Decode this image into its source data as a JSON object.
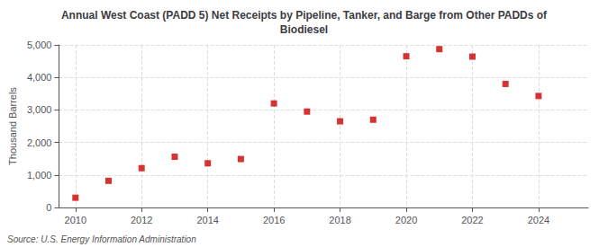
{
  "chart_data": {
    "type": "scatter",
    "title": "Annual West Coast (PADD 5) Net Receipts by Pipeline, Tanker, and Barge from Other PADDs of\nBiodiesel",
    "ylabel": "Thousand Barrels",
    "source": "Source: U.S. Energy Information Administration",
    "x": [
      2010,
      2011,
      2012,
      2013,
      2014,
      2015,
      2016,
      2017,
      2018,
      2019,
      2020,
      2021,
      2022,
      2023,
      2024
    ],
    "values": [
      300,
      820,
      1210,
      1560,
      1360,
      1490,
      3200,
      2950,
      2650,
      2700,
      4650,
      4870,
      4640,
      3800,
      3430
    ],
    "color": "#CC0000",
    "marker": "square",
    "xlim": [
      2009.5,
      2025.5
    ],
    "xticks": [
      2010,
      2012,
      2014,
      2016,
      2018,
      2020,
      2022,
      2024
    ],
    "ylim": [
      0,
      5000
    ],
    "yticks": [
      0,
      {
        "value": 1000,
        "label": "1,000"
      },
      {
        "value": 2000,
        "label": "2,000"
      },
      {
        "value": 3000,
        "label": "3,000"
      },
      {
        "value": 4000,
        "label": "4,000"
      },
      {
        "value": 5000,
        "label": "5,000"
      }
    ],
    "grid": true
  }
}
